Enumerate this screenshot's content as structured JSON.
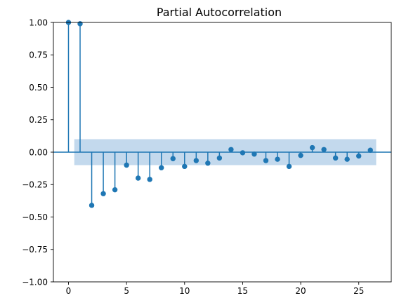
{
  "chart_data": {
    "type": "stem",
    "title": "Partial Autocorrelation",
    "xlabel": "",
    "ylabel": "",
    "xlim": [
      -1.3,
      27.8
    ],
    "ylim": [
      -1.0,
      1.0
    ],
    "xticks": [
      0,
      5,
      10,
      15,
      20,
      25
    ],
    "xtick_labels": [
      "0",
      "5",
      "10",
      "15",
      "20",
      "25"
    ],
    "yticks": [
      1.0,
      0.75,
      0.5,
      0.25,
      0.0,
      -0.25,
      -0.5,
      -0.75,
      -1.0
    ],
    "ytick_labels": [
      "1.00",
      "0.75",
      "0.50",
      "0.25",
      "0.00",
      "−0.25",
      "−0.50",
      "−0.75",
      "−1.00"
    ],
    "grid": false,
    "confidence_band": {
      "x_range": [
        0.5,
        26.5
      ],
      "lower": -0.1,
      "upper": 0.1,
      "color": "#c3d9ed"
    },
    "series_color": "#1f77b4",
    "lags": [
      0,
      1,
      2,
      3,
      4,
      5,
      6,
      7,
      8,
      9,
      10,
      11,
      12,
      13,
      14,
      15,
      16,
      17,
      18,
      19,
      20,
      21,
      22,
      23,
      24,
      25,
      26
    ],
    "values": [
      1.0,
      0.99,
      -0.41,
      -0.32,
      -0.29,
      -0.1,
      -0.2,
      -0.21,
      -0.12,
      -0.05,
      -0.11,
      -0.065,
      -0.085,
      -0.045,
      0.02,
      -0.005,
      -0.015,
      -0.065,
      -0.055,
      -0.11,
      -0.025,
      0.035,
      0.02,
      -0.045,
      -0.055,
      -0.03,
      0.015
    ]
  }
}
